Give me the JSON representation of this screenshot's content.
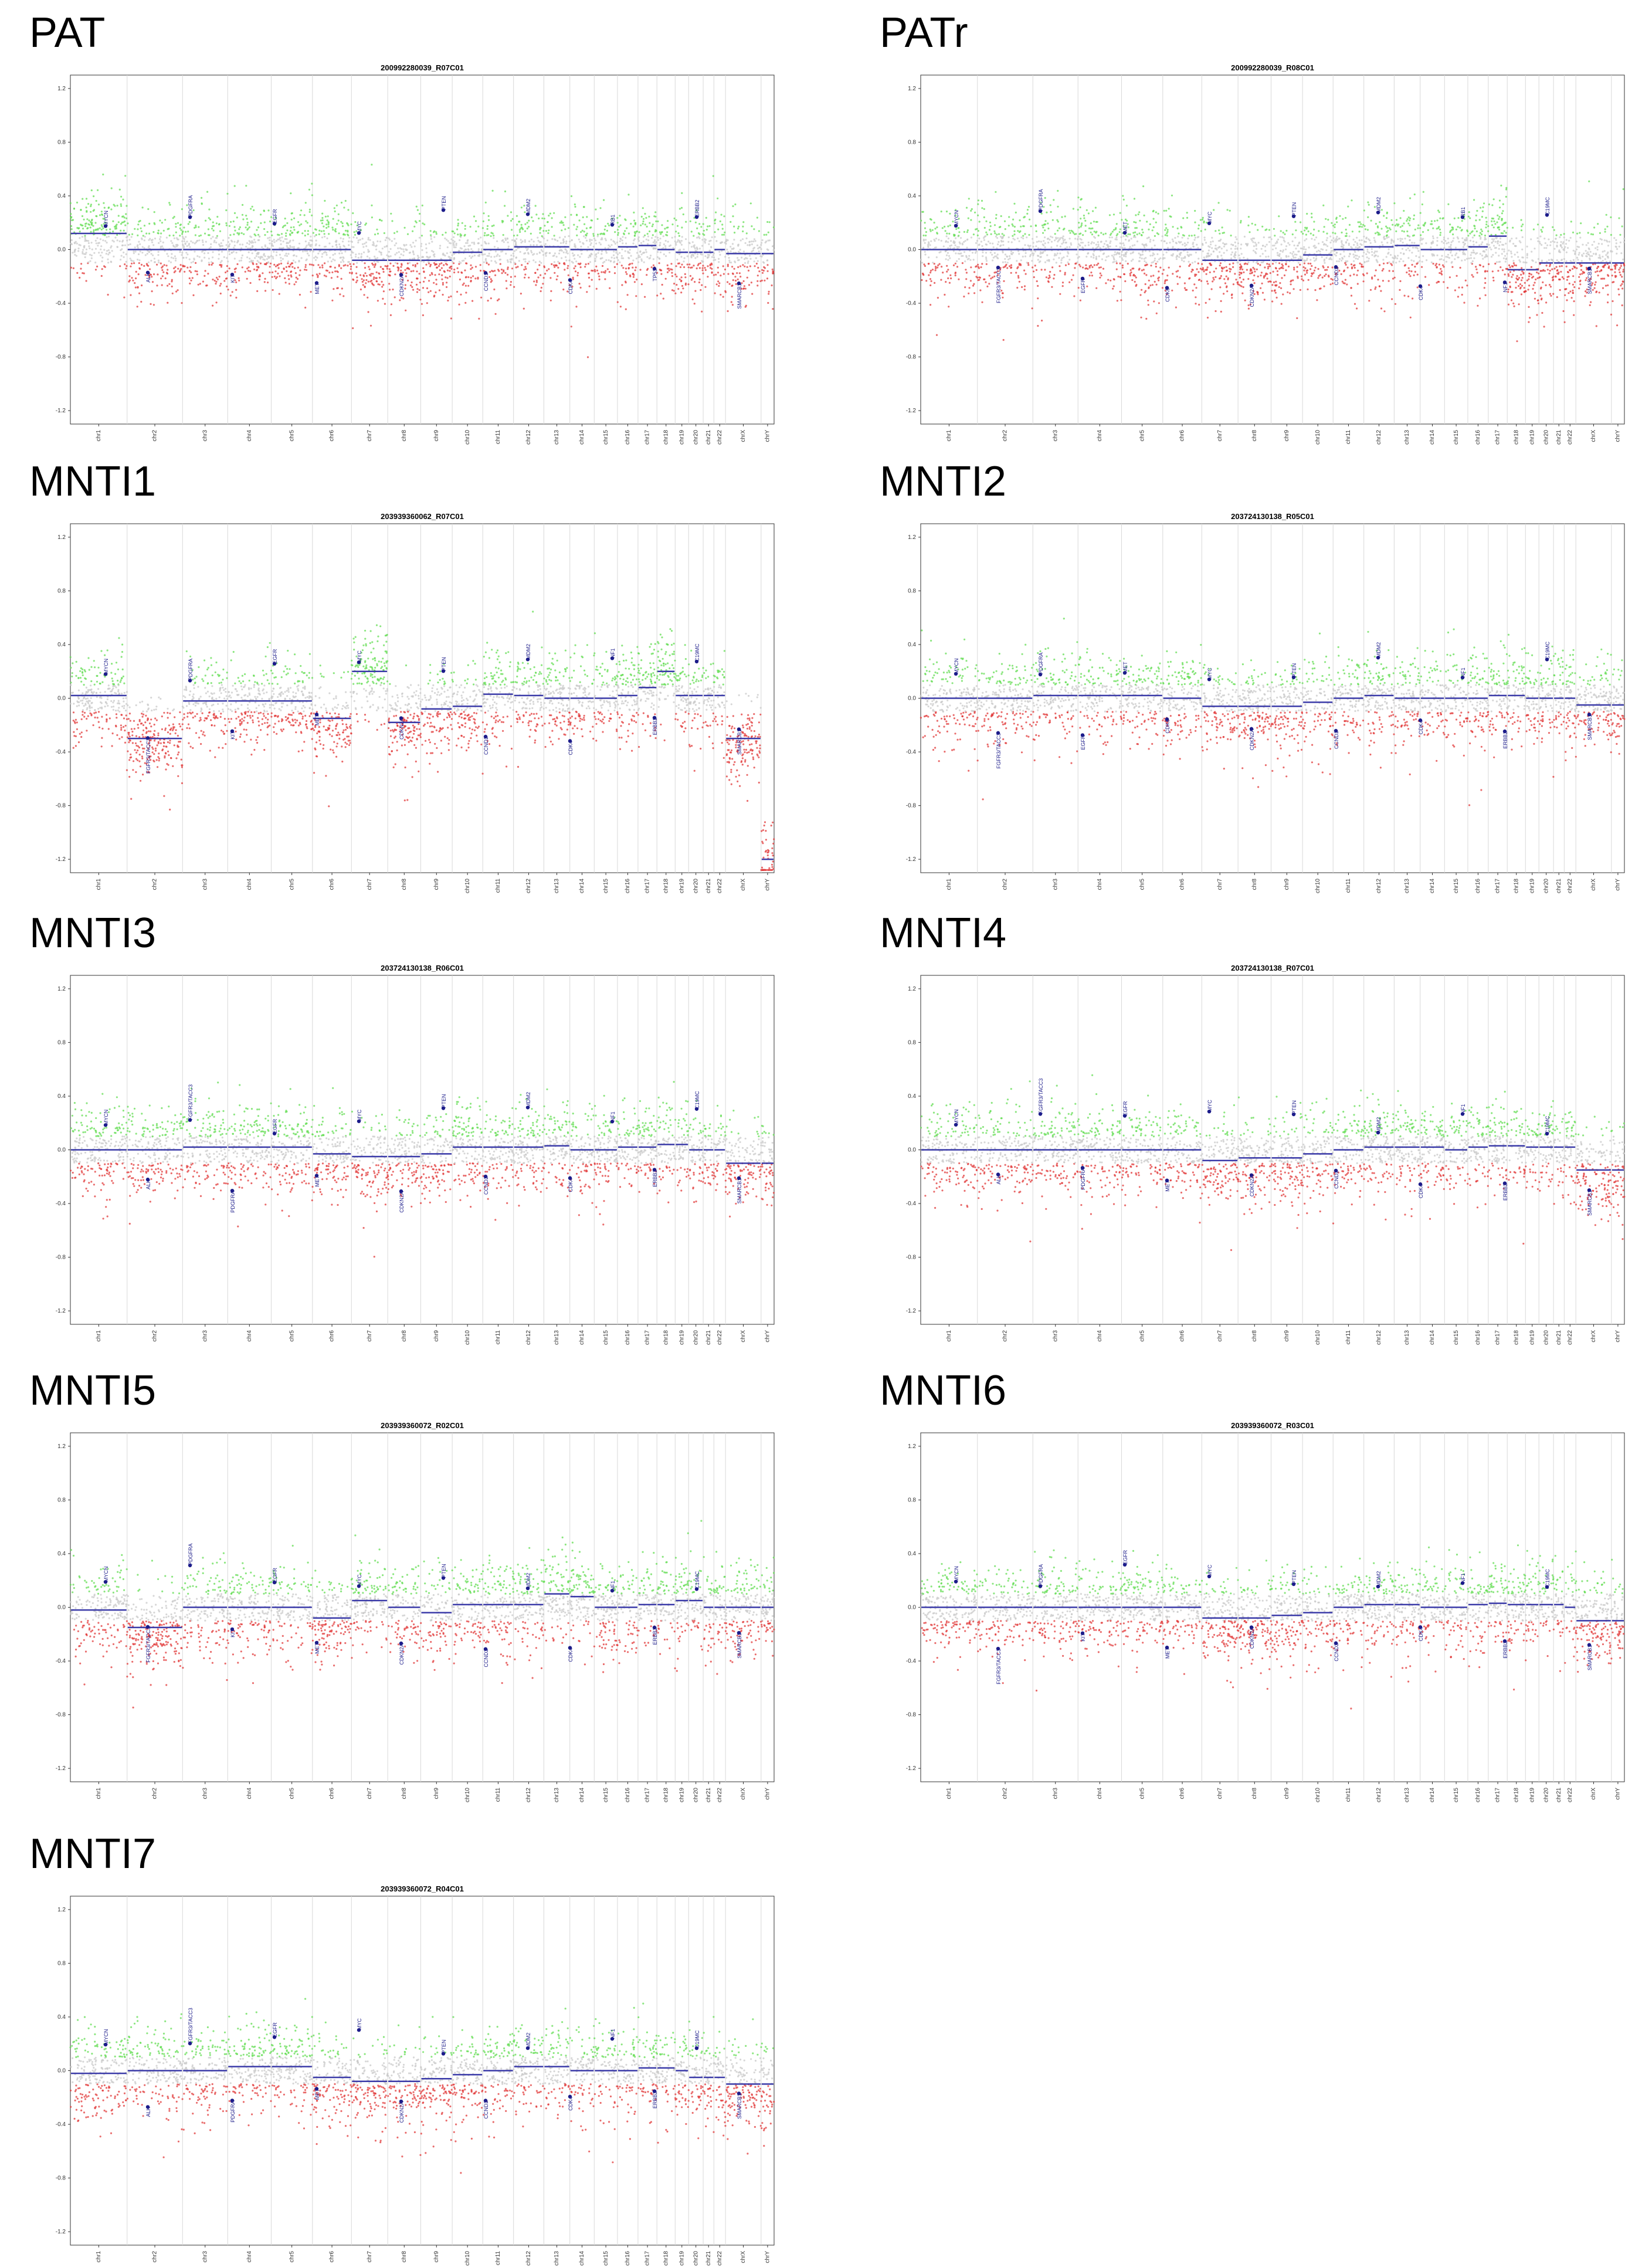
{
  "colors": {
    "gain": "#66dd55",
    "loss": "#e23b3b",
    "neutral": "#c9c9c9",
    "segment": "#3a3aa8",
    "gene": "#1c1c8a",
    "frame": "#333333"
  },
  "panels": [
    {
      "label": "PAT",
      "title": "200992280039_R07C01"
    },
    {
      "label": "PATr",
      "title": "200992280039_R08C01"
    },
    {
      "label": "MNTI1",
      "title": "203939360062_R07C01"
    },
    {
      "label": "MNTI2",
      "title": "203724130138_R05C01"
    },
    {
      "label": "MNTI3",
      "title": "203724130138_R06C01"
    },
    {
      "label": "MNTI4",
      "title": "203724130138_R07C01"
    },
    {
      "label": "MNTI5",
      "title": "203939360072_R02C01"
    },
    {
      "label": "MNTI6",
      "title": "203939360072_R03C01"
    },
    {
      "label": "MNTI7",
      "title": "203939360072_R04C01"
    }
  ],
  "chart_data": {
    "type": "scatter",
    "description_axis": "copy number log2 ratio by chromosome",
    "ylim": [
      -1.3,
      1.3
    ],
    "yticks": [
      "1.2",
      "0.8",
      "0.4",
      "0.0",
      "-0.4",
      "-0.8",
      "-1.2"
    ],
    "ytick_values": [
      1.2,
      0.8,
      0.4,
      0.0,
      -0.4,
      -0.8,
      -1.2
    ],
    "chromosomes": [
      "chr1",
      "chr2",
      "chr3",
      "chr4",
      "chr5",
      "chr6",
      "chr7",
      "chr8",
      "chr9",
      "chr10",
      "chr11",
      "chr12",
      "chr13",
      "chr14",
      "chr15",
      "chr16",
      "chr17",
      "chr18",
      "chr19",
      "chr20",
      "chr21",
      "chr22",
      "chrX",
      "chrY"
    ],
    "chrom_lengths": [
      249,
      243,
      198,
      191,
      181,
      171,
      159,
      145,
      138,
      134,
      135,
      133,
      114,
      107,
      102,
      90,
      83,
      80,
      59,
      64,
      47,
      51,
      156,
      57
    ],
    "series": [
      {
        "name": "PAT",
        "segments": [
          0.12,
          0.0,
          0.0,
          0.0,
          0.0,
          0.0,
          -0.08,
          -0.08,
          -0.08,
          -0.02,
          0.0,
          0.02,
          0.02,
          0.0,
          0.0,
          0.02,
          0.03,
          0.0,
          -0.02,
          -0.02,
          -0.02,
          0.0,
          -0.03,
          -0.03
        ],
        "genes": [
          "MYCN",
          "ALK",
          "PDGFRA",
          "KIT",
          "EGFR",
          "MET",
          "MYC",
          "CDKN2A",
          "PTEN",
          "CCND1",
          "MDM2",
          "CDK4",
          "RB1",
          "TP53",
          "ERBB2",
          "SMARCB1"
        ]
      },
      {
        "name": "PATr",
        "segments": [
          0.0,
          0.0,
          0.0,
          0.0,
          0.0,
          0.0,
          -0.08,
          -0.08,
          -0.08,
          -0.04,
          0.0,
          0.02,
          0.03,
          0.0,
          0.0,
          0.02,
          0.1,
          -0.15,
          -0.15,
          -0.1,
          -0.1,
          -0.1,
          -0.1,
          -0.1
        ],
        "genes": [
          "MYCN",
          "FGFR3/TACC3",
          "PDGFRA",
          "EGFR",
          "MET",
          "CDK6",
          "MYC",
          "CDKN2A",
          "PTEN",
          "CCND2",
          "MDM2",
          "CDK4",
          "RB1",
          "NF1",
          "C19MC",
          "SMARCB1"
        ]
      },
      {
        "name": "MNTI1",
        "segments": [
          0.02,
          -0.3,
          -0.02,
          -0.02,
          -0.02,
          -0.15,
          0.2,
          -0.18,
          -0.08,
          -0.06,
          0.03,
          0.02,
          0.0,
          0.0,
          0.0,
          0.02,
          0.08,
          0.2,
          0.02,
          0.02,
          0.02,
          0.02,
          -0.3,
          -1.2
        ],
        "genes": [
          "MYCN",
          "FGFR3/TACC3",
          "PDGFRA",
          "KIT",
          "EGFR",
          "MET",
          "MYC",
          "CDKN2A",
          "PTEN",
          "CCND2",
          "MDM2",
          "CDK4",
          "NF1",
          "ERBB2",
          "C19MC",
          "SMARCB1"
        ]
      },
      {
        "name": "MNTI2",
        "segments": [
          0.0,
          0.0,
          0.02,
          0.02,
          0.02,
          0.0,
          -0.06,
          -0.06,
          -0.06,
          -0.03,
          0.0,
          0.02,
          0.0,
          0.0,
          0.0,
          0.0,
          0.02,
          0.02,
          0.0,
          0.0,
          0.0,
          0.0,
          -0.05,
          -0.05
        ],
        "genes": [
          "MYCN",
          "FGFR3/TACC3",
          "PDGFRA",
          "EGFR",
          "MET",
          "CDK6",
          "MYC",
          "CDKN2A",
          "PTEN",
          "CCND2",
          "MDM2",
          "CDK4",
          "NF1",
          "ERBB2",
          "C19MC",
          "SMARCB1"
        ]
      },
      {
        "name": "MNTI3",
        "segments": [
          0.0,
          0.0,
          0.02,
          0.02,
          0.02,
          -0.03,
          -0.05,
          -0.05,
          -0.03,
          0.02,
          0.02,
          0.02,
          0.03,
          0.0,
          0.0,
          0.02,
          0.02,
          0.04,
          0.04,
          0.0,
          0.0,
          0.0,
          -0.1,
          -0.1
        ],
        "genes": [
          "MYCN",
          "ALK",
          "FGFR3/TACC3",
          "PDGFRA",
          "EGFR",
          "MET",
          "MYC",
          "CDKN2A",
          "PTEN",
          "CCND2",
          "MDM2",
          "CDK4",
          "NF1",
          "ERBB2",
          "C19MC",
          "SMARCB1"
        ]
      },
      {
        "name": "MNTI4",
        "segments": [
          0.0,
          0.0,
          0.0,
          0.0,
          0.0,
          0.0,
          -0.08,
          -0.06,
          -0.06,
          -0.03,
          0.0,
          0.02,
          0.02,
          0.02,
          0.0,
          0.02,
          0.03,
          0.03,
          0.02,
          0.02,
          0.02,
          0.02,
          -0.15,
          -0.15
        ],
        "genes": [
          "MYCN",
          "ALK",
          "FGFR3/TACC3",
          "PDGFRA",
          "EGFR",
          "MET",
          "MYC",
          "CDKN2A",
          "PTEN",
          "CCND2",
          "MDM2",
          "CDK4",
          "NF1",
          "ERBB2",
          "C19MC",
          "SMARCB1"
        ]
      },
      {
        "name": "MNTI5",
        "segments": [
          -0.02,
          -0.15,
          0.0,
          0.0,
          0.0,
          -0.08,
          0.05,
          0.0,
          -0.04,
          0.02,
          0.02,
          0.02,
          0.1,
          0.08,
          0.0,
          0.0,
          0.02,
          0.02,
          0.05,
          0.05,
          0.0,
          0.0,
          0.0,
          0.0
        ],
        "genes": [
          "MYCN",
          "FGFR3/TACC3",
          "PDGFRA",
          "KIT",
          "EGFR",
          "MET",
          "MYC",
          "CDKN2A",
          "PTEN",
          "CCND2",
          "MDM2",
          "CDK4",
          "NF1",
          "ERBB2",
          "C19MC",
          "SMARCB1"
        ]
      },
      {
        "name": "MNTI6",
        "segments": [
          0.0,
          0.0,
          0.0,
          0.0,
          0.0,
          0.0,
          -0.08,
          -0.08,
          -0.06,
          -0.04,
          0.0,
          0.02,
          0.02,
          0.0,
          0.0,
          0.02,
          0.03,
          0.02,
          0.02,
          0.02,
          0.02,
          0.0,
          -0.1,
          -0.1
        ],
        "genes": [
          "MYCN",
          "FGFR3/TACC3",
          "PDGFRA",
          "KIT",
          "EGFR",
          "MET",
          "MYC",
          "CDKN2A",
          "PTEN",
          "CCND2",
          "MDM2",
          "CDK4",
          "NF1",
          "ERBB2",
          "C19MC",
          "SMARCB1"
        ]
      },
      {
        "name": "MNTI7",
        "segments": [
          -0.02,
          0.0,
          0.0,
          0.03,
          0.03,
          -0.05,
          -0.08,
          -0.08,
          -0.06,
          -0.03,
          0.0,
          0.03,
          0.03,
          0.0,
          0.0,
          0.0,
          0.02,
          0.02,
          0.0,
          -0.05,
          -0.05,
          -0.05,
          -0.1,
          -0.1
        ],
        "genes": [
          "MYCN",
          "ALK",
          "FGFR3/TACC3",
          "PDGFRA",
          "EGFR",
          "MET",
          "MYC",
          "CDKN2A",
          "PTEN",
          "CCND2",
          "MDM2",
          "CDK4",
          "NF1",
          "ERBB2",
          "C19MC",
          "SMARCB1"
        ]
      }
    ]
  }
}
